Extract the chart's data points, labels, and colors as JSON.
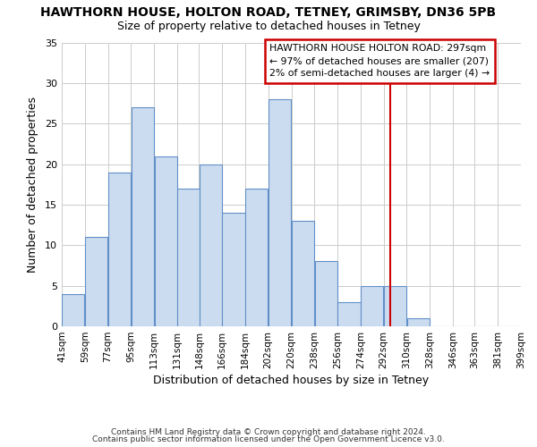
{
  "title": "HAWTHORN HOUSE, HOLTON ROAD, TETNEY, GRIMSBY, DN36 5PB",
  "subtitle": "Size of property relative to detached houses in Tetney",
  "xlabel": "Distribution of detached houses by size in Tetney",
  "ylabel": "Number of detached properties",
  "bar_left_edges": [
    41,
    59,
    77,
    95,
    113,
    131,
    148,
    166,
    184,
    202,
    220,
    238,
    256,
    274,
    292,
    310,
    328,
    346,
    363,
    381
  ],
  "bar_heights": [
    4,
    11,
    19,
    27,
    21,
    17,
    20,
    14,
    17,
    28,
    13,
    8,
    3,
    5,
    5,
    1,
    0,
    0,
    0,
    0
  ],
  "bin_width": 18,
  "bar_facecolor": "#ccdcf0",
  "bar_edgecolor": "#6090c8",
  "vline_x": 297,
  "vline_color": "#cc0000",
  "ylim": [
    0,
    35
  ],
  "xlim": [
    41,
    399
  ],
  "tick_labels": [
    "41sqm",
    "59sqm",
    "77sqm",
    "95sqm",
    "113sqm",
    "131sqm",
    "148sqm",
    "166sqm",
    "184sqm",
    "202sqm",
    "220sqm",
    "238sqm",
    "256sqm",
    "274sqm",
    "292sqm",
    "310sqm",
    "328sqm",
    "346sqm",
    "363sqm",
    "381sqm",
    "399sqm"
  ],
  "tick_positions": [
    41,
    59,
    77,
    95,
    113,
    131,
    148,
    166,
    184,
    202,
    220,
    238,
    256,
    274,
    292,
    310,
    328,
    346,
    363,
    381,
    399
  ],
  "annotation_title": "HAWTHORN HOUSE HOLTON ROAD: 297sqm",
  "annotation_line1": "← 97% of detached houses are smaller (207)",
  "annotation_line2": "2% of semi-detached houses are larger (4) →",
  "footer1": "Contains HM Land Registry data © Crown copyright and database right 2024.",
  "footer2": "Contains public sector information licensed under the Open Government Licence v3.0.",
  "grid_color": "#cccccc",
  "background_color": "#ffffff",
  "yticks": [
    0,
    5,
    10,
    15,
    20,
    25,
    30,
    35
  ]
}
